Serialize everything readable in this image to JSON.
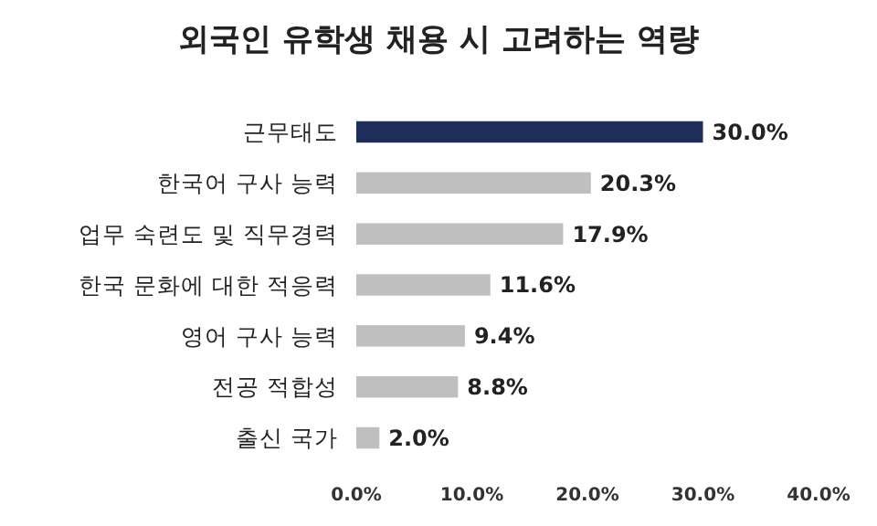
{
  "chart_data": {
    "type": "bar",
    "orientation": "horizontal",
    "title": "외국인 유학생 채용 시 고려하는 역량",
    "categories": [
      "근무태도",
      "한국어 구사 능력",
      "업무 숙련도 및 직무경력",
      "한국 문화에 대한 적응력",
      "영어 구사 능력",
      "전공 적합성",
      "출신 국가"
    ],
    "values": [
      30.0,
      20.3,
      17.9,
      11.6,
      9.4,
      8.8,
      2.0
    ],
    "colors": [
      "#1f2d5a",
      "#bfbfbf",
      "#bfbfbf",
      "#bfbfbf",
      "#bfbfbf",
      "#bfbfbf",
      "#bfbfbf"
    ],
    "value_labels": [
      "30.0%",
      "20.3%",
      "17.9%",
      "11.6%",
      "9.4%",
      "8.8%",
      "2.0%"
    ],
    "xlim": [
      0,
      40
    ],
    "xticks": [
      {
        "value": 0,
        "label": "0.0%"
      },
      {
        "value": 10,
        "label": "10.0%"
      },
      {
        "value": 20,
        "label": "20.0%"
      },
      {
        "value": 30,
        "label": "30.0%"
      },
      {
        "value": 40,
        "label": "40.0%"
      }
    ],
    "grid": false
  }
}
